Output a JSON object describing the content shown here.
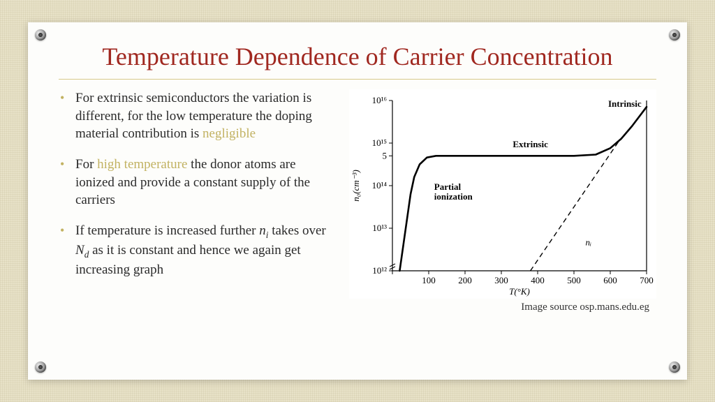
{
  "title": "Temperature Dependence of Carrier Concentration",
  "title_color": "#a02820",
  "divider_color": "#d8c98a",
  "highlight_color": "#c2b262",
  "text_color": "#2a2a2a",
  "bullets": [
    {
      "pre": "For extrinsic semiconductors the variation is different, for the low temperature the doping material contribution is ",
      "hl": "negligible",
      "post": ""
    },
    {
      "pre": "For ",
      "hl": "high temperature",
      "post": " the donor atoms are ionized and provide a constant supply of the carriers"
    },
    {
      "pre": "If temperature is increased further ",
      "math1": "n",
      "sub1": "i",
      "mid": " takes over ",
      "math2": "N",
      "sub2": "d",
      "post2": " as it is constant and hence we again get increasing graph"
    }
  ],
  "image_source": "Image source osp.mans.edu.eg",
  "chart": {
    "type": "line-logy",
    "xlabel": "T(°K)",
    "ylabel": "n₀(cm⁻³)",
    "xlim": [
      0,
      700
    ],
    "xtick_step": 100,
    "ylim_exp": [
      12,
      16
    ],
    "ytick_labels": [
      "10¹²",
      "10¹³",
      "10¹⁴",
      "5",
      "10¹⁵",
      "10¹⁶"
    ],
    "ytick_exp": [
      12,
      13,
      14,
      14.7,
      15,
      16
    ],
    "axis_color": "#000000",
    "line_color": "#000000",
    "line_width": 2.6,
    "dash_color": "#000000",
    "dash_width": 1.4,
    "font_family": "Times New Roman, serif",
    "label_fontsize": 13,
    "annotation_fontsize": 13,
    "annotations": [
      {
        "text": "Partial ionization",
        "x": 115,
        "y_exp": 13.9,
        "weight": "bold"
      },
      {
        "text": "Extrinsic",
        "x": 380,
        "y_exp": 14.9,
        "weight": "bold"
      },
      {
        "text": "Intrinsic",
        "x": 640,
        "y_exp": 15.85,
        "weight": "bold"
      },
      {
        "text": "nᵢ",
        "x": 540,
        "y_exp": 12.6,
        "weight": "normal",
        "italic": true
      }
    ],
    "main_curve": [
      {
        "T": 20,
        "exp": 12.0
      },
      {
        "T": 30,
        "exp": 12.6
      },
      {
        "T": 40,
        "exp": 13.2
      },
      {
        "T": 50,
        "exp": 13.8
      },
      {
        "T": 60,
        "exp": 14.2
      },
      {
        "T": 75,
        "exp": 14.5
      },
      {
        "T": 95,
        "exp": 14.66
      },
      {
        "T": 120,
        "exp": 14.7
      },
      {
        "T": 200,
        "exp": 14.7
      },
      {
        "T": 300,
        "exp": 14.7
      },
      {
        "T": 400,
        "exp": 14.7
      },
      {
        "T": 500,
        "exp": 14.7
      },
      {
        "T": 560,
        "exp": 14.73
      },
      {
        "T": 600,
        "exp": 14.88
      },
      {
        "T": 630,
        "exp": 15.1
      },
      {
        "T": 660,
        "exp": 15.4
      },
      {
        "T": 700,
        "exp": 15.85
      }
    ],
    "ni_curve": [
      {
        "T": 380,
        "exp": 12.0
      },
      {
        "T": 420,
        "exp": 12.5
      },
      {
        "T": 460,
        "exp": 13.0
      },
      {
        "T": 500,
        "exp": 13.5
      },
      {
        "T": 540,
        "exp": 14.0
      },
      {
        "T": 580,
        "exp": 14.5
      },
      {
        "T": 620,
        "exp": 15.0
      },
      {
        "T": 660,
        "exp": 15.4
      },
      {
        "T": 700,
        "exp": 15.85
      }
    ]
  }
}
